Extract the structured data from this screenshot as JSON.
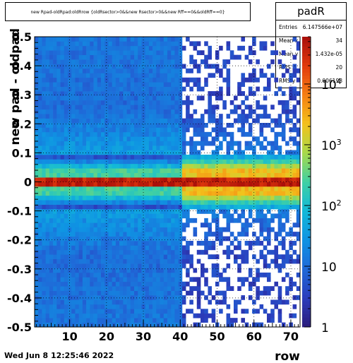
{
  "title": "new Rpad-oldRpad:oldRrow {oldRsector>0&&new Rsector>0&&new Rff==0&&oldRff==0}",
  "stats": {
    "name": "padR",
    "rows": [
      {
        "label": "Entries",
        "value": "6.147566e+07"
      },
      {
        "label": "Mean x",
        "value": "34"
      },
      {
        "label": "Mean y",
        "value": "1.432e-05"
      },
      {
        "label": "RMS x",
        "value": "20"
      },
      {
        "label": "RMS y",
        "value": "0.006198"
      }
    ]
  },
  "footer_timestamp": "Wed Jun  8 12:25:46 2022",
  "chart_data": {
    "type": "heatmap",
    "title": "new Rpad-oldRpad:oldRrow {oldRsector>0&&new Rsector>0&&new Rff==0&&oldRff==0}",
    "xlabel": "row",
    "ylabel": "new pad - oldpad",
    "xlim": [
      0.5,
      72.5
    ],
    "ylim": [
      -0.5,
      0.5
    ],
    "x_ticks": [
      10,
      20,
      30,
      40,
      50,
      60,
      70
    ],
    "y_ticks": [
      -0.5,
      -0.4,
      -0.3,
      -0.2,
      -0.1,
      0,
      0.1,
      0.2,
      0.3,
      0.4,
      0.5
    ],
    "z_scale": "log",
    "z_ticks": [
      {
        "value": 1,
        "base": "1",
        "exp": ""
      },
      {
        "value": 10,
        "base": "10",
        "exp": ""
      },
      {
        "value": 100,
        "base": "10",
        "exp": "2"
      },
      {
        "value": 1000,
        "base": "10",
        "exp": "3"
      },
      {
        "value": 10000,
        "base": "10",
        "exp": "4"
      }
    ],
    "zlim": [
      1,
      60000
    ],
    "grid": true,
    "palette": [
      "#2a1b7a",
      "#2b3dbc",
      "#1f69d8",
      "#0f93e3",
      "#12b9d8",
      "#3fd0a4",
      "#a8d94a",
      "#f4c21b",
      "#f57f13",
      "#e23a0c",
      "#a80d0a"
    ],
    "regions": [
      {
        "rows": [
          1,
          40
        ],
        "central_row_counts": 40000,
        "core_counts": 250,
        "tail_counts": 40,
        "edge_counts": 12
      },
      {
        "rows": [
          41,
          72
        ],
        "central_row_counts": 40000,
        "core_counts": 2600,
        "tail_counts": 15,
        "edge_counts": 0
      }
    ]
  }
}
